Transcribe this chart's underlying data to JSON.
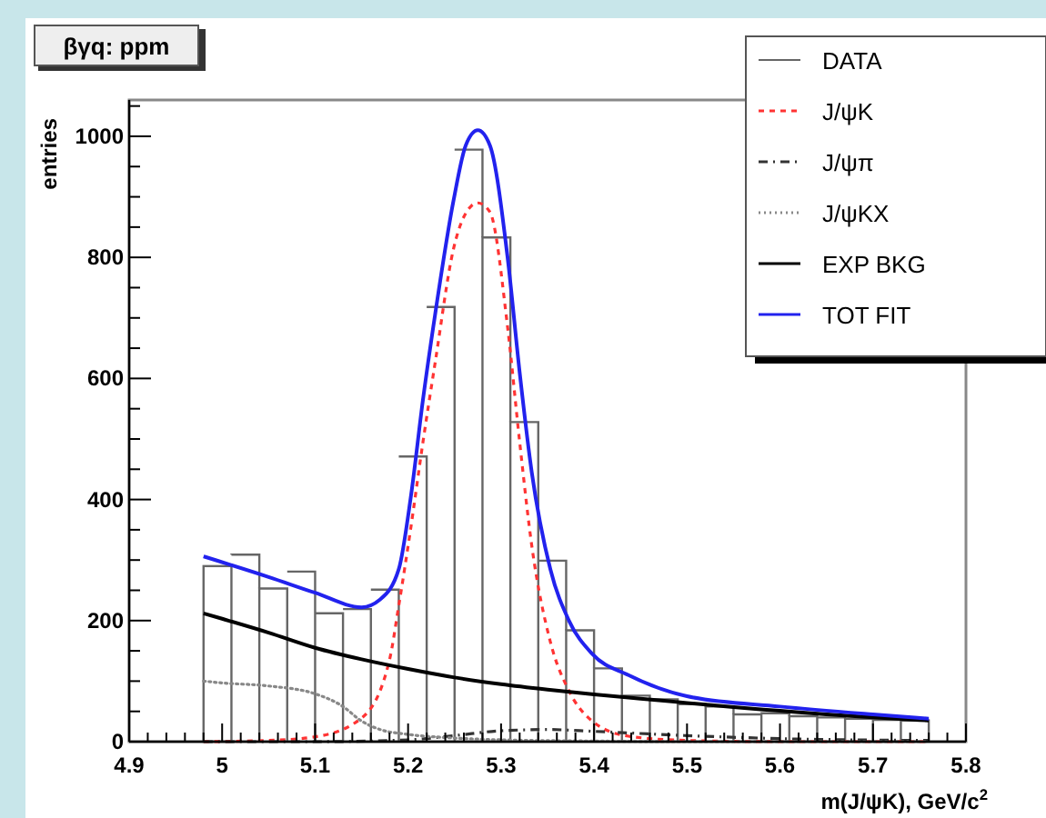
{
  "chart_data": {
    "type": "histogram",
    "title": "βγq: ppm",
    "xlabel": "m(J/ψK), GeV/c$^{2}$",
    "ylabel": "entries",
    "bins": [
      4.98,
      5.01,
      5.04,
      5.07,
      5.1,
      5.13,
      5.16,
      5.19,
      5.22,
      5.25,
      5.28,
      5.31,
      5.34,
      5.37,
      5.4,
      5.43,
      5.46,
      5.49,
      5.52,
      5.55,
      5.58,
      5.61,
      5.64,
      5.67,
      5.7,
      5.73,
      5.76
    ],
    "xlim": [
      4.9,
      5.8
    ],
    "ylim": [
      0,
      1060
    ],
    "xticks": [
      4.9,
      {
        "value": 4.92,
        "label": null
      },
      {
        "value": 4.94,
        "label": null
      },
      {
        "value": 4.96,
        "label": null
      },
      {
        "value": 4.98,
        "label": null
      },
      5,
      {
        "value": 5.02,
        "label": null
      },
      {
        "value": 5.04,
        "label": null
      },
      {
        "value": 5.06,
        "label": null
      },
      {
        "value": 5.08,
        "label": null
      },
      5.1,
      {
        "value": 5.12,
        "label": null
      },
      {
        "value": 5.14,
        "label": null
      },
      {
        "value": 5.16,
        "label": null
      },
      {
        "value": 5.18,
        "label": null
      },
      5.2,
      {
        "value": 5.22,
        "label": null
      },
      {
        "value": 5.24,
        "label": null
      },
      {
        "value": 5.26,
        "label": null
      },
      {
        "value": 5.28,
        "label": null
      },
      5.3,
      {
        "value": 5.32,
        "label": null
      },
      {
        "value": 5.34,
        "label": null
      },
      {
        "value": 5.36,
        "label": null
      },
      {
        "value": 5.38,
        "label": null
      },
      5.4,
      {
        "value": 5.42,
        "label": null
      },
      {
        "value": 5.44,
        "label": null
      },
      {
        "value": 5.46,
        "label": null
      },
      {
        "value": 5.48,
        "label": null
      },
      5.5,
      {
        "value": 5.52,
        "label": null
      },
      {
        "value": 5.54,
        "label": null
      },
      {
        "value": 5.56,
        "label": null
      },
      {
        "value": 5.58,
        "label": null
      },
      5.6,
      {
        "value": 5.62,
        "label": null
      },
      {
        "value": 5.64,
        "label": null
      },
      {
        "value": 5.66,
        "label": null
      },
      {
        "value": 5.68,
        "label": null
      },
      5.7,
      {
        "value": 5.72,
        "label": null
      },
      {
        "value": 5.74,
        "label": null
      },
      {
        "value": 5.76,
        "label": null
      },
      {
        "value": 5.78,
        "label": null
      },
      5.8
    ],
    "yticks": [
      0,
      {
        "value": 50,
        "label": null
      },
      {
        "value": 100,
        "label": null
      },
      {
        "value": 150,
        "label": null
      },
      200,
      {
        "value": 250,
        "label": null
      },
      {
        "value": 300,
        "label": null
      },
      {
        "value": 350,
        "label": null
      },
      400,
      {
        "value": 450,
        "label": null
      },
      {
        "value": 500,
        "label": null
      },
      {
        "value": 550,
        "label": null
      },
      600,
      {
        "value": 650,
        "label": null
      },
      {
        "value": 700,
        "label": null
      },
      {
        "value": 750,
        "label": null
      },
      800,
      {
        "value": 850,
        "label": null
      },
      {
        "value": 900,
        "label": null
      },
      {
        "value": 950,
        "label": null
      },
      1000,
      {
        "value": 1050,
        "label": null
      }
    ],
    "legend": "top right",
    "grid": false,
    "series": [
      {
        "name": "DATA",
        "color": "#666666",
        "values": [
          290,
          309,
          253,
          281,
          212,
          219,
          251,
          471,
          718,
          978,
          833,
          528,
          299,
          184,
          121,
          76,
          70,
          62,
          58,
          45,
          47,
          42,
          40,
          38,
          36,
          35
        ]
      },
      {
        "name": "J/ψK",
        "type": "line",
        "color": "#ff3333",
        "line_style": "dashed",
        "x": [
          4.98,
          5.05,
          5.1,
          5.15,
          5.18,
          5.19,
          5.203,
          5.216,
          5.229,
          5.249,
          5.268,
          5.275,
          5.288,
          5.307,
          5.32,
          5.333,
          5.353,
          5.373,
          5.398,
          5.437,
          5.5,
          5.6,
          5.76
        ],
        "values": [
          0,
          2,
          8,
          39,
          135,
          225,
          354,
          495,
          625,
          815,
          885,
          890,
          875,
          685,
          495,
          324,
          165,
          84,
          34,
          9,
          2,
          0,
          0
        ]
      },
      {
        "name": "J/ψπ",
        "type": "line",
        "color": "#333333",
        "line_style": "dashdot",
        "x": [
          4.98,
          5.1,
          5.2,
          5.25,
          5.3,
          5.35,
          5.4,
          5.5,
          5.6,
          5.76
        ],
        "values": [
          0,
          0,
          3,
          10,
          18,
          20,
          17,
          10,
          5,
          2
        ]
      },
      {
        "name": "J/ψKX",
        "type": "line",
        "color": "#888888",
        "line_style": "dotted",
        "x": [
          4.98,
          5.0,
          5.05,
          5.1,
          5.13,
          5.15,
          5.17,
          5.2,
          5.25,
          5.3,
          5.4,
          5.5,
          5.76
        ],
        "values": [
          100,
          97,
          92,
          79,
          58,
          34,
          20,
          12,
          6,
          3,
          1,
          0,
          0
        ]
      },
      {
        "name": "EXP BKG",
        "type": "line",
        "color": "#000000",
        "line_style": "solid",
        "x": [
          4.98,
          5.0,
          5.05,
          5.1,
          5.15,
          5.2,
          5.25,
          5.3,
          5.35,
          5.4,
          5.45,
          5.5,
          5.55,
          5.6,
          5.65,
          5.7,
          5.76
        ],
        "values": [
          212,
          203,
          180,
          155,
          136,
          120,
          106,
          95,
          86,
          78,
          71,
          64,
          57,
          51,
          45,
          40,
          35
        ]
      },
      {
        "name": "TOT FIT",
        "type": "line",
        "color": "#2222ee",
        "line_style": "solid",
        "x": [
          4.98,
          5.05,
          5.1,
          5.15,
          5.17,
          5.19,
          5.203,
          5.216,
          5.229,
          5.249,
          5.262,
          5.275,
          5.288,
          5.307,
          5.32,
          5.333,
          5.353,
          5.373,
          5.398,
          5.437,
          5.5,
          5.6,
          5.7,
          5.76
        ],
        "values": [
          306,
          272,
          246,
          222,
          235,
          285,
          405,
          565,
          705,
          895,
          985,
          1010,
          985,
          800,
          610,
          445,
          285,
          200,
          145,
          110,
          75,
          58,
          45,
          38
        ]
      }
    ]
  }
}
